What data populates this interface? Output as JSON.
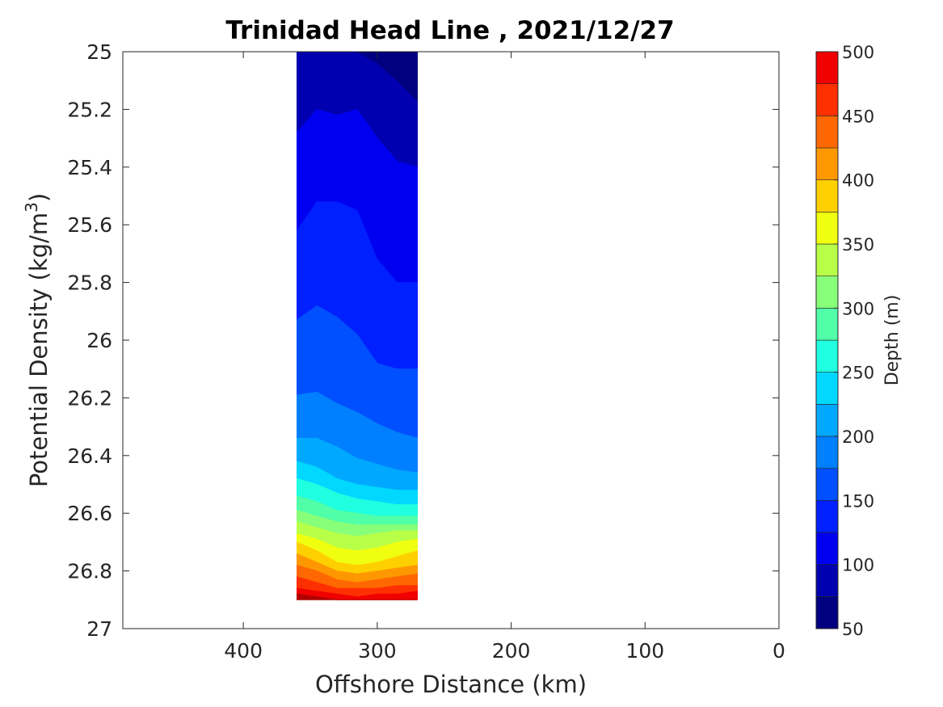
{
  "chart_data": {
    "type": "heatmap",
    "title": "Trinidad Head Line , 2021/12/27",
    "xlabel": "Offshore Distance (km)",
    "ylabel": "Potential Density (kg/m3)",
    "ylabel_main": "Potential Density (kg/m",
    "ylabel_sup": "3",
    "ylabel_close": ")",
    "xlim": [
      490,
      0
    ],
    "ylim": [
      25,
      27
    ],
    "x_reversed": true,
    "y_reversed": true,
    "xticks": [
      400,
      300,
      200,
      100,
      0
    ],
    "xtick_labels": [
      "400",
      "300",
      "200",
      "100",
      "0"
    ],
    "yticks": [
      25,
      25.2,
      25.4,
      25.6,
      25.8,
      26,
      26.2,
      26.4,
      26.6,
      26.8,
      27
    ],
    "ytick_labels": [
      "25",
      "25.2",
      "25.4",
      "25.6",
      "25.8",
      "26",
      "26.2",
      "26.4",
      "26.6",
      "26.8",
      "27"
    ],
    "grid": false,
    "data_x_range": [
      270,
      360
    ],
    "data_y_range": [
      25,
      26.9
    ],
    "x_stations": [
      360,
      345,
      330,
      315,
      300,
      285,
      270
    ],
    "contour_levels": [
      75,
      100,
      125,
      150,
      175,
      200,
      225,
      250,
      275,
      300,
      325,
      350,
      375,
      400,
      425,
      450,
      475
    ],
    "contour_boundaries": [
      [
        25.28,
        25.2,
        25.22,
        25.2,
        25.3,
        25.38,
        25.4
      ],
      [
        25.62,
        25.52,
        25.52,
        25.55,
        25.72,
        25.8,
        25.8
      ],
      [
        25.93,
        25.88,
        25.92,
        25.98,
        26.08,
        26.1,
        26.1
      ],
      [
        26.19,
        26.18,
        26.22,
        26.25,
        26.29,
        26.32,
        26.34
      ],
      [
        26.34,
        26.34,
        26.37,
        26.41,
        26.43,
        26.45,
        26.46
      ],
      [
        26.42,
        26.44,
        26.48,
        26.5,
        26.51,
        26.52,
        26.52
      ],
      [
        26.48,
        26.5,
        26.53,
        26.55,
        26.56,
        26.57,
        26.57
      ],
      [
        26.54,
        26.56,
        26.59,
        26.6,
        26.61,
        26.61,
        26.61
      ],
      [
        26.59,
        26.61,
        26.63,
        26.64,
        26.64,
        26.64,
        26.64
      ],
      [
        26.63,
        26.65,
        26.67,
        26.68,
        26.67,
        26.66,
        26.66
      ],
      [
        26.67,
        26.69,
        26.72,
        26.73,
        26.72,
        26.7,
        26.69
      ],
      [
        26.7,
        26.73,
        26.77,
        26.78,
        26.77,
        26.75,
        26.73
      ],
      [
        26.74,
        26.77,
        26.8,
        26.81,
        26.8,
        26.79,
        26.78
      ],
      [
        26.78,
        26.8,
        26.83,
        26.84,
        26.83,
        26.82,
        26.81
      ],
      [
        26.82,
        26.84,
        26.86,
        26.86,
        26.86,
        26.85,
        26.85
      ],
      [
        26.86,
        26.87,
        26.88,
        26.89,
        26.88,
        26.88,
        26.87
      ],
      [
        26.88,
        26.89,
        26.9,
        26.9,
        26.9,
        26.9,
        26.9
      ]
    ],
    "top_band_boundary": {
      "x": [
        360,
        330,
        315,
        300,
        285,
        270
      ],
      "y": [
        25,
        25,
        25,
        25.04,
        25.1,
        25.17
      ]
    },
    "colorbar": {
      "label": "Depth (m)",
      "range": [
        50,
        500
      ],
      "ticks": [
        50,
        100,
        150,
        200,
        250,
        300,
        350,
        400,
        450,
        500
      ],
      "tick_labels": [
        "50",
        "100",
        "150",
        "200",
        "250",
        "300",
        "350",
        "400",
        "450",
        "500"
      ],
      "band_width": 25,
      "colors": [
        "#000080",
        "#0000b0",
        "#0000f0",
        "#0020ff",
        "#0050ff",
        "#0080ff",
        "#00a8ff",
        "#00d8ff",
        "#20ffe0",
        "#50ffa8",
        "#88ff78",
        "#b8ff48",
        "#f0ff10",
        "#ffd000",
        "#ff9800",
        "#ff6800",
        "#ff3000",
        "#f00000",
        "#b00000"
      ]
    }
  }
}
